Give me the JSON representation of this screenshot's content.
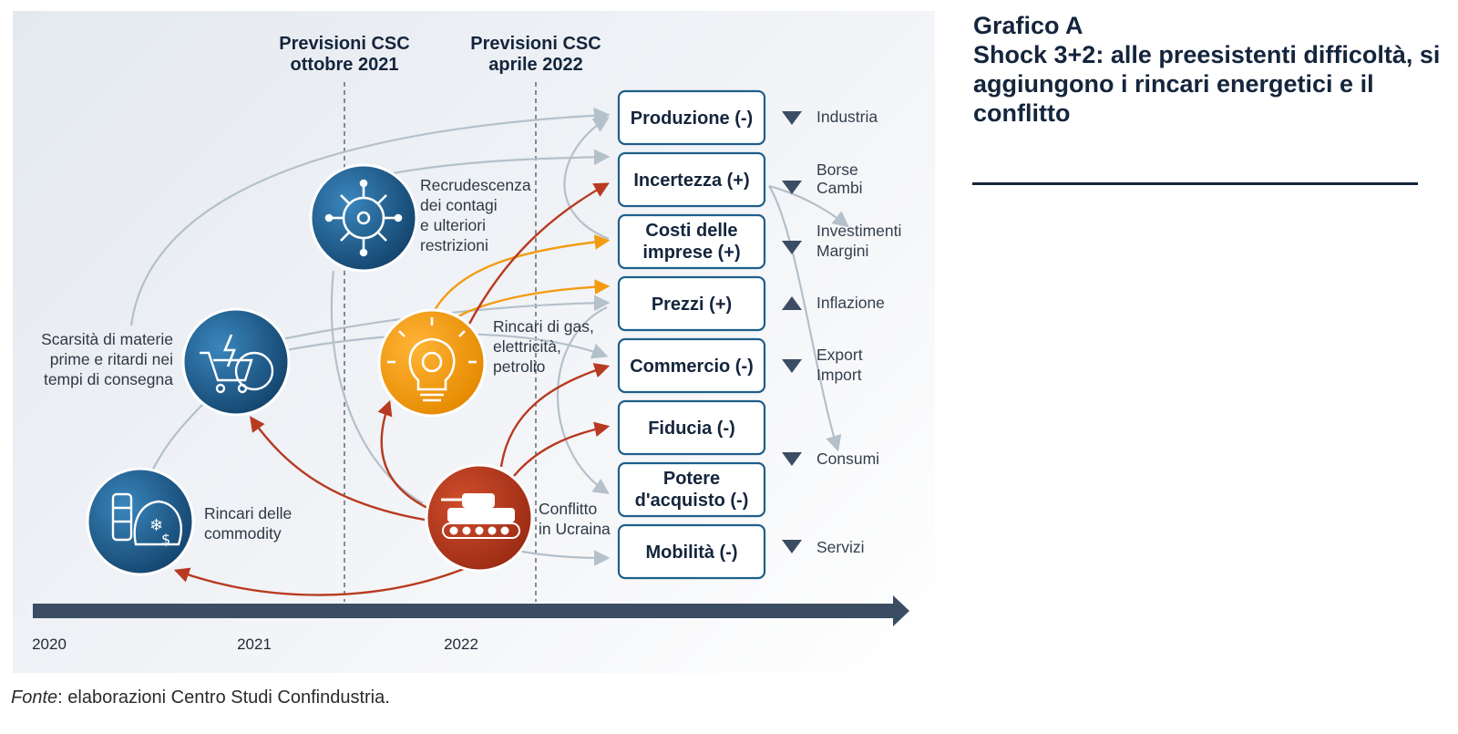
{
  "title": {
    "line1": "Grafico A",
    "line2": "Shock 3+2: alle preesistenti difficoltà, si aggiungono i rincari energetici e il conflitto"
  },
  "source": {
    "label": "Fonte",
    "text": ": elaborazioni Centro Studi Confindustria."
  },
  "forecasts": [
    {
      "line1": "Previsioni CSC",
      "line2": "ottobre 2021"
    },
    {
      "line1": "Previsioni CSC",
      "line2": "aprile 2022"
    }
  ],
  "timeline": {
    "years": [
      "2020",
      "2021",
      "2022"
    ]
  },
  "drivers": {
    "commodity": {
      "lines": [
        "Rincari delle",
        "commodity"
      ],
      "icon": "commodity-icon",
      "color": "#1e5d8c"
    },
    "supply": {
      "lines": [
        "Scarsità di materie",
        "prime e ritardi nei",
        "tempi di consegna"
      ],
      "icon": "cart-globe-icon",
      "color": "#1e5d8c"
    },
    "covid": {
      "lines": [
        "Recrudescenza",
        "dei contagi",
        "e ulteriori",
        "restrizioni"
      ],
      "icon": "virus-icon",
      "color": "#1e5d8c"
    },
    "energy": {
      "lines": [
        "Rincari di gas,",
        "elettricità,",
        "petrolio"
      ],
      "icon": "lightbulb-icon",
      "color": "#f39c12"
    },
    "war": {
      "lines": [
        "Conflitto",
        "in Ucraina"
      ],
      "icon": "tank-icon",
      "color": "#b83a20"
    }
  },
  "effects": [
    {
      "lines": [
        "Produzione (-)"
      ]
    },
    {
      "lines": [
        "Incertezza (+)"
      ]
    },
    {
      "lines": [
        "Costi delle",
        "imprese (+)"
      ]
    },
    {
      "lines": [
        "Prezzi (+)"
      ]
    },
    {
      "lines": [
        "Commercio (-)"
      ]
    },
    {
      "lines": [
        "Fiducia (-)"
      ]
    },
    {
      "lines": [
        "Potere",
        "d'acquisto (-)"
      ]
    },
    {
      "lines": [
        "Mobilità (-)"
      ]
    }
  ],
  "indicators": [
    {
      "lines": [
        "Industria"
      ],
      "direction": "down"
    },
    {
      "lines": [
        "Borse",
        "Cambi"
      ],
      "direction": "down"
    },
    {
      "lines": [
        "Investimenti",
        "Margini"
      ],
      "direction": "down"
    },
    {
      "lines": [
        "Inflazione"
      ],
      "direction": "up"
    },
    {
      "lines": [
        "Export",
        "Import"
      ],
      "direction": "down"
    },
    {
      "lines": [
        "Consumi"
      ],
      "direction": "down"
    },
    {
      "lines": [
        "Servizi"
      ],
      "direction": "down"
    }
  ],
  "colors": {
    "navy": "#14253c",
    "blue": "#1e5d8c",
    "orange": "#f39c12",
    "red": "#b83a20",
    "grey_arrow": "#b4c0ca",
    "timeline": "#3b4d63"
  }
}
